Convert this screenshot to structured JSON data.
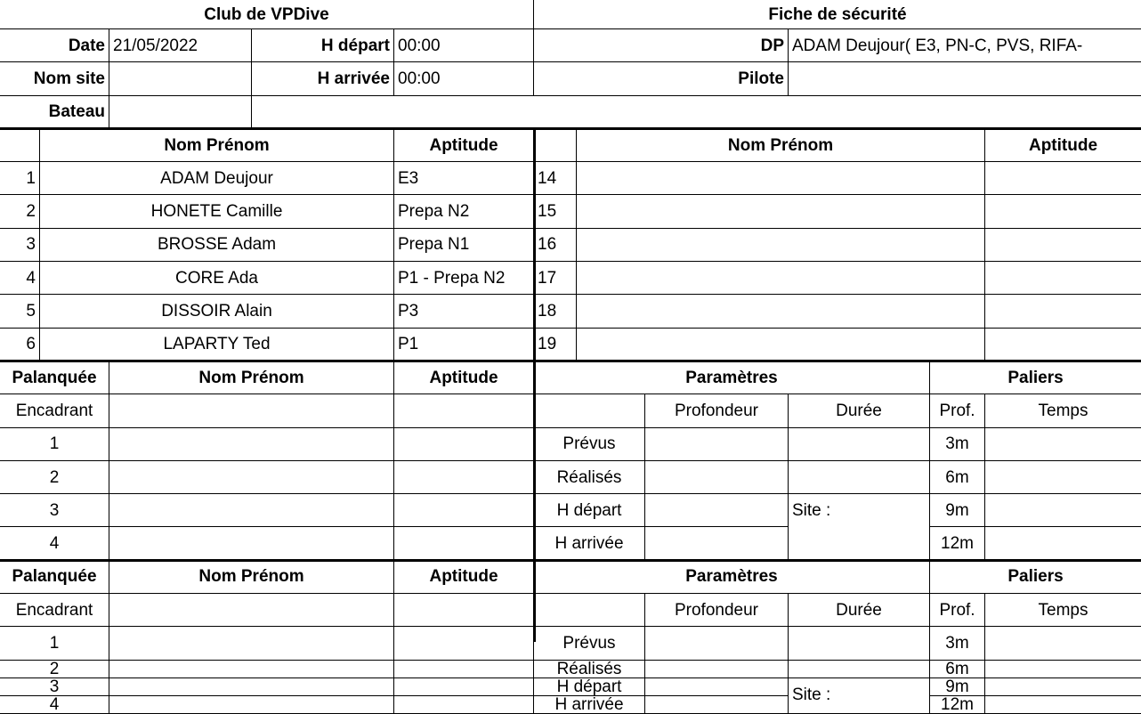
{
  "header": {
    "club_title": "Club de VPDive",
    "sheet_title": "Fiche de sécurité",
    "date_label": "Date",
    "date_value": "21/05/2022",
    "depart_label": "H départ",
    "depart_value": "00:00",
    "site_label": "Nom site",
    "site_value": "",
    "arrivee_label": "H arrivée",
    "arrivee_value": "00:00",
    "bateau_label": "Bateau",
    "bateau_value": "",
    "dp_label": "DP",
    "dp_value": "ADAM Deujour( E3, PN-C, PVS, RIFA-",
    "pilote_label": "Pilote",
    "pilote_value": ""
  },
  "roster": {
    "col_name": "Nom Prénom",
    "col_aptitude": "Aptitude",
    "left": [
      {
        "num": "1",
        "name": "ADAM Deujour",
        "aptitude": "E3"
      },
      {
        "num": "2",
        "name": "HONETE Camille",
        "aptitude": "Prepa N2"
      },
      {
        "num": "3",
        "name": "BROSSE Adam",
        "aptitude": "Prepa N1"
      },
      {
        "num": "4",
        "name": "CORE Ada",
        "aptitude": "P1 - Prepa N2"
      },
      {
        "num": "5",
        "name": "DISSOIR Alain",
        "aptitude": "P3"
      },
      {
        "num": "6",
        "name": "LAPARTY Ted",
        "aptitude": "P1"
      }
    ],
    "right": [
      {
        "num": "14",
        "name": "",
        "aptitude": ""
      },
      {
        "num": "15",
        "name": "",
        "aptitude": ""
      },
      {
        "num": "16",
        "name": "",
        "aptitude": ""
      },
      {
        "num": "17",
        "name": "",
        "aptitude": ""
      },
      {
        "num": "18",
        "name": "",
        "aptitude": ""
      },
      {
        "num": "19",
        "name": "",
        "aptitude": ""
      }
    ]
  },
  "palanquee_labels": {
    "palanquee": "Palanquée",
    "nom": "Nom Prénom",
    "aptitude": "Aptitude",
    "parametres": "Paramètres",
    "paliers": "Paliers",
    "encadrant": "Encadrant",
    "profondeur": "Profondeur",
    "duree": "Durée",
    "prof": "Prof.",
    "temps": "Temps",
    "prevus": "Prévus",
    "realises": "Réalisés",
    "h_depart": "H départ",
    "h_arrivee": "H arrivée",
    "site": "Site :",
    "members": [
      "1",
      "2",
      "3",
      "4"
    ],
    "paliers_depths": [
      "3m",
      "6m",
      "9m",
      "12m"
    ]
  }
}
